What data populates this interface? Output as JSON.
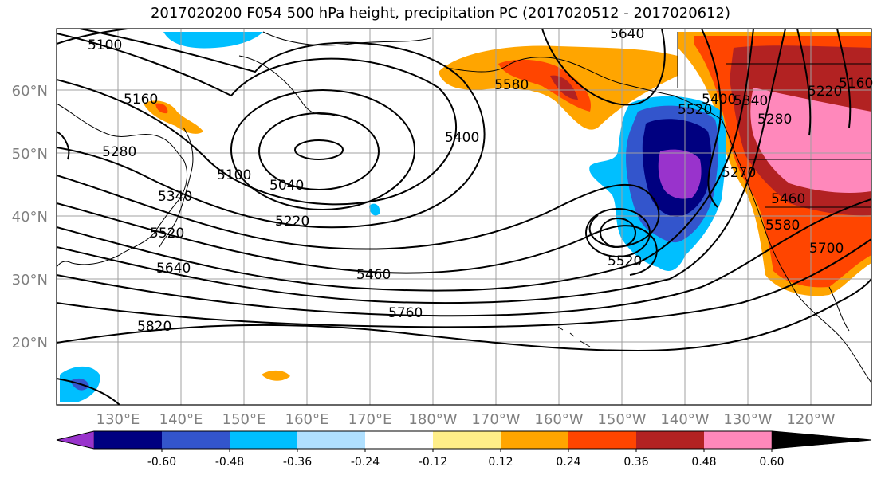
{
  "title": "2017020200 F054 500 hPa height, precipitation PC (2017020512 - 2017020612)",
  "lat_labels": [
    "60°N",
    "50°N",
    "40°N",
    "30°N",
    "20°N"
  ],
  "lon_labels": [
    "130°E",
    "140°E",
    "150°E",
    "160°E",
    "170°E",
    "180°W",
    "170°W",
    "160°W",
    "150°W",
    "140°W",
    "130°W",
    "120°W"
  ],
  "contour_labels": [
    "5100",
    "5160",
    "5280",
    "5340",
    "5520",
    "5640",
    "5100",
    "5040",
    "5220",
    "5460",
    "5400",
    "5820",
    "5760",
    "5520",
    "5580",
    "5640",
    "5520",
    "5400",
    "5340",
    "5280",
    "5220",
    "5160",
    "5270",
    "5460",
    "5580",
    "5700"
  ],
  "colorbar": {
    "colors": [
      "#9933cc",
      "#000080",
      "#3355cc",
      "#00bfff",
      "#b0e0ff",
      "#ffffff",
      "#ffee88",
      "#ffa500",
      "#ff4500",
      "#b22222",
      "#ff88bb"
    ],
    "tick_labels": [
      "-0.60",
      "-0.48",
      "-0.36",
      "-0.24",
      "-0.12",
      "0.12",
      "0.24",
      "0.36",
      "0.48",
      "0.60"
    ]
  }
}
